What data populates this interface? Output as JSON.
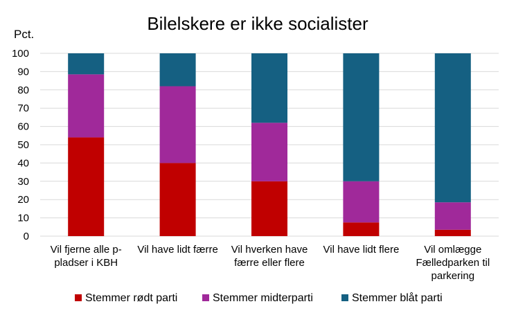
{
  "chart_data": {
    "type": "bar",
    "stacked": true,
    "title": "Bilelskere er ikke socialister",
    "ylabel": "Pct.",
    "xlabel": "",
    "ylim": [
      0,
      100
    ],
    "yticks": [
      0,
      10,
      20,
      30,
      40,
      50,
      60,
      70,
      80,
      90,
      100
    ],
    "grid": true,
    "legend": "bottom",
    "categories": [
      [
        "Vil fjerne alle p-",
        "pladser i KBH"
      ],
      [
        "Vil have lidt færre"
      ],
      [
        "Vil hverken have",
        "færre eller flere"
      ],
      [
        "Vil have lidt flere"
      ],
      [
        "Vil omlægge",
        "Fælledparken til",
        "parkering"
      ]
    ],
    "series": [
      {
        "name": "Stemmer rødt parti",
        "color": "#c00000",
        "values": [
          54,
          40,
          30,
          7.5,
          3.5
        ]
      },
      {
        "name": "Stemmer midterparti",
        "color": "#a0299a",
        "values": [
          34.5,
          42,
          32,
          22.5,
          15
        ]
      },
      {
        "name": "Stemmer blåt parti",
        "color": "#156082",
        "values": [
          11.5,
          18,
          38,
          70,
          81.5
        ]
      }
    ]
  }
}
